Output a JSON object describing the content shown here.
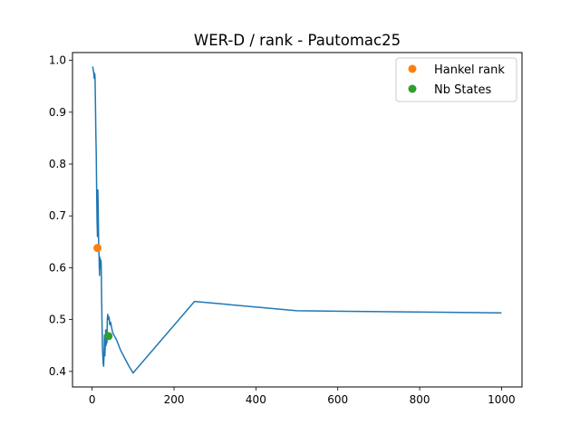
{
  "chart_data": {
    "type": "line",
    "title": "WER-D / rank - Pautomac25",
    "xlabel": "",
    "ylabel": "",
    "xlim": [
      -48,
      1050
    ],
    "ylim": [
      0.37,
      1.015
    ],
    "xticks": [
      0,
      200,
      400,
      600,
      800,
      1000
    ],
    "yticks": [
      0.4,
      0.5,
      0.6,
      0.7,
      0.8,
      0.9,
      1.0
    ],
    "xtick_labels": [
      "0",
      "200",
      "400",
      "600",
      "800",
      "1000"
    ],
    "ytick_labels": [
      "0.4",
      "0.5",
      "0.6",
      "0.7",
      "0.8",
      "0.9",
      "1.0"
    ],
    "grid": false,
    "legend_position": "upper right",
    "line": {
      "color": "#1f77b4",
      "x": [
        1,
        2,
        3,
        4,
        5,
        6,
        7,
        8,
        9,
        10,
        11,
        12,
        13,
        14,
        15,
        16,
        17,
        18,
        19,
        20,
        21,
        22,
        23,
        24,
        25,
        26,
        27,
        28,
        29,
        30,
        31,
        32,
        33,
        34,
        35,
        36,
        37,
        38,
        39,
        40,
        41,
        42,
        43,
        44,
        45,
        50,
        60,
        70,
        80,
        90,
        100,
        250,
        500,
        1000
      ],
      "y": [
        0.988,
        0.985,
        0.98,
        0.975,
        0.965,
        0.975,
        0.968,
        0.92,
        0.86,
        0.82,
        0.75,
        0.69,
        0.66,
        0.75,
        0.7,
        0.64,
        0.62,
        0.585,
        0.62,
        0.6,
        0.615,
        0.61,
        0.55,
        0.5,
        0.45,
        0.43,
        0.415,
        0.41,
        0.43,
        0.47,
        0.43,
        0.45,
        0.48,
        0.45,
        0.48,
        0.455,
        0.5,
        0.51,
        0.505,
        0.5,
        0.505,
        0.5,
        0.49,
        0.49,
        0.495,
        0.475,
        0.46,
        0.44,
        0.425,
        0.41,
        0.397,
        0.535,
        0.517,
        0.513
      ]
    },
    "points": [
      {
        "name": "Hankel rank",
        "x": 13,
        "y": 0.638,
        "color": "#ff7f0e"
      },
      {
        "name": "Nb States",
        "x": 40,
        "y": 0.468,
        "color": "#2ca02c"
      }
    ]
  }
}
